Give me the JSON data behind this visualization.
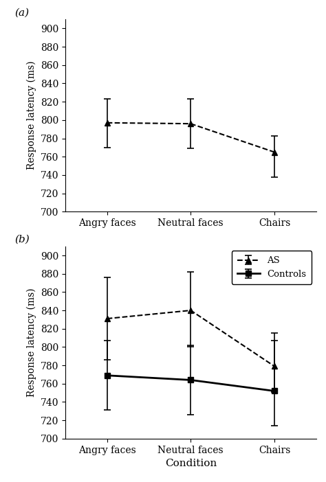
{
  "panel_a": {
    "label": "(a)",
    "x_labels": [
      "Angry faces",
      "Neutral faces",
      "Chairs"
    ],
    "AS_means": [
      797,
      796,
      765
    ],
    "AS_yerr_lower": [
      27,
      27,
      27
    ],
    "AS_yerr_upper": [
      26,
      27,
      18
    ],
    "ylabel": "Response latency (ms)",
    "ylim": [
      700,
      910
    ],
    "yticks": [
      700,
      720,
      740,
      760,
      780,
      800,
      820,
      840,
      860,
      880,
      900
    ]
  },
  "panel_b": {
    "label": "(b)",
    "x_labels": [
      "Angry faces",
      "Neutral faces",
      "Chairs"
    ],
    "AS_means": [
      831,
      840,
      779
    ],
    "AS_yerr_lower": [
      45,
      40,
      28
    ],
    "AS_yerr_upper": [
      45,
      42,
      28
    ],
    "Controls_means": [
      769,
      764,
      752
    ],
    "Controls_yerr_lower": [
      38,
      38,
      38
    ],
    "Controls_yerr_upper": [
      38,
      38,
      63
    ],
    "ylabel": "Response latency (ms)",
    "xlabel": "Condition",
    "ylim": [
      700,
      910
    ],
    "yticks": [
      700,
      720,
      740,
      760,
      780,
      800,
      820,
      840,
      860,
      880,
      900
    ],
    "legend_labels": [
      "AS",
      "Controls"
    ]
  }
}
